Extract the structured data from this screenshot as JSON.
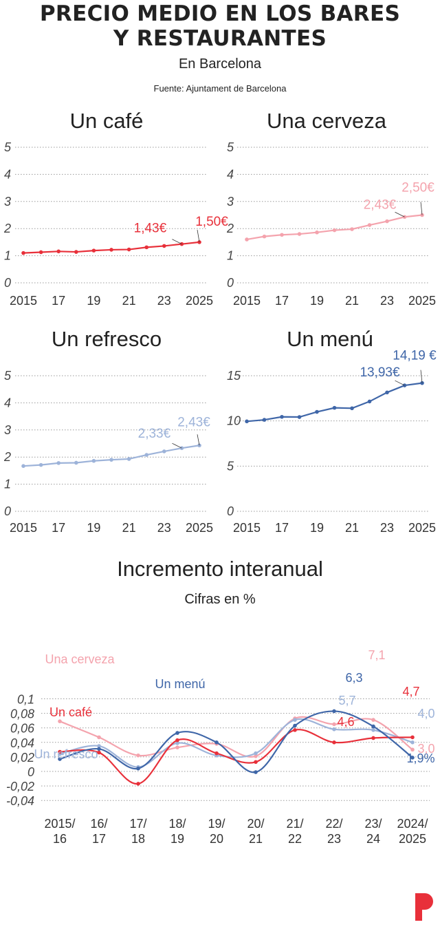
{
  "header": {
    "title_line1": "PRECIO MEDIO EN LOS BARES",
    "title_line2": "Y RESTAURANTES",
    "subtitle": "En Barcelona",
    "source": "Fuente: Ajuntament de Barcelona"
  },
  "colors": {
    "cafe": "#e8303a",
    "cerveza": "#f4a3ad",
    "refresco": "#9db3d9",
    "menu": "#3f66a8",
    "grid": "#9a9a9a",
    "logo": "#e8303a"
  },
  "logo_icon": "p-brand-logo",
  "chart_data": [
    {
      "type": "line",
      "title": "Un café",
      "x": [
        2015,
        2016,
        2017,
        2018,
        2019,
        2020,
        2021,
        2022,
        2023,
        2024,
        2025
      ],
      "x_tick_labels": [
        "2015",
        "17",
        "19",
        "21",
        "23",
        "2025"
      ],
      "x_tick_values": [
        2015,
        2017,
        2019,
        2021,
        2023,
        2025
      ],
      "series": [
        {
          "key": "cafe",
          "values": [
            1.1,
            1.13,
            1.16,
            1.14,
            1.19,
            1.22,
            1.23,
            1.31,
            1.36,
            1.43,
            1.5
          ]
        }
      ],
      "ylim": [
        0,
        5
      ],
      "yticks": [
        0,
        1,
        2,
        3,
        4,
        5
      ],
      "annotations": [
        {
          "index": 9,
          "text": "1,43€"
        },
        {
          "index": 10,
          "text": "1,50€"
        }
      ]
    },
    {
      "type": "line",
      "title": "Una cerveza",
      "x": [
        2015,
        2016,
        2017,
        2018,
        2019,
        2020,
        2021,
        2022,
        2023,
        2024,
        2025
      ],
      "x_tick_labels": [
        "2015",
        "17",
        "19",
        "21",
        "23",
        "2025"
      ],
      "x_tick_values": [
        2015,
        2017,
        2019,
        2021,
        2023,
        2025
      ],
      "series": [
        {
          "key": "cerveza",
          "values": [
            1.6,
            1.71,
            1.77,
            1.8,
            1.86,
            1.94,
            1.98,
            2.13,
            2.27,
            2.43,
            2.5
          ]
        }
      ],
      "ylim": [
        0,
        5
      ],
      "yticks": [
        0,
        1,
        2,
        3,
        4,
        5
      ],
      "annotations": [
        {
          "index": 9,
          "text": "2,43€"
        },
        {
          "index": 10,
          "text": "2,50€"
        }
      ]
    },
    {
      "type": "line",
      "title": "Un refresco",
      "x": [
        2015,
        2016,
        2017,
        2018,
        2019,
        2020,
        2021,
        2022,
        2023,
        2024,
        2025
      ],
      "x_tick_labels": [
        "2015",
        "17",
        "19",
        "21",
        "23",
        "2025"
      ],
      "x_tick_values": [
        2015,
        2017,
        2019,
        2021,
        2023,
        2025
      ],
      "series": [
        {
          "key": "refresco",
          "values": [
            1.67,
            1.71,
            1.78,
            1.79,
            1.86,
            1.9,
            1.93,
            2.08,
            2.21,
            2.33,
            2.43
          ]
        }
      ],
      "ylim": [
        0,
        5
      ],
      "yticks": [
        0,
        1,
        2,
        3,
        4,
        5
      ],
      "annotations": [
        {
          "index": 9,
          "text": "2,33€"
        },
        {
          "index": 10,
          "text": "2,43€"
        }
      ]
    },
    {
      "type": "line",
      "title": "Un menú",
      "x": [
        2015,
        2016,
        2017,
        2018,
        2019,
        2020,
        2021,
        2022,
        2023,
        2024,
        2025
      ],
      "x_tick_labels": [
        "2015",
        "17",
        "19",
        "21",
        "23",
        "2025"
      ],
      "x_tick_values": [
        2015,
        2017,
        2019,
        2021,
        2023,
        2025
      ],
      "series": [
        {
          "key": "menu",
          "values": [
            9.95,
            10.12,
            10.45,
            10.43,
            11.0,
            11.45,
            11.4,
            12.15,
            13.15,
            13.93,
            14.19
          ]
        }
      ],
      "ylim": [
        0,
        15
      ],
      "yticks": [
        0,
        5,
        10,
        15
      ],
      "annotations": [
        {
          "index": 9,
          "text": "13,93€"
        },
        {
          "index": 10,
          "text": "14,19 €"
        }
      ]
    },
    {
      "type": "line",
      "title": "Incremento interanual",
      "subtitle": "Cifras en %",
      "categories": [
        "2015/16",
        "16/17",
        "17/18",
        "18/19",
        "19/20",
        "20/21",
        "21/22",
        "22/23",
        "23/24",
        "2024/2025"
      ],
      "ylim": [
        -0.04,
        0.1
      ],
      "yticks": [
        -0.04,
        -0.02,
        0,
        0.02,
        0.04,
        0.06,
        0.08,
        0.1
      ],
      "ytick_labels": [
        "-0,04",
        "-0,02",
        "0",
        "0,02",
        "0,04",
        "0,06",
        "0,08",
        "0,1"
      ],
      "series": [
        {
          "key": "cerveza",
          "name": "Una cerveza",
          "values": [
            0.069,
            0.047,
            0.022,
            0.033,
            0.038,
            0.021,
            0.073,
            0.065,
            0.071,
            0.03
          ]
        },
        {
          "key": "refresco",
          "name": "Un refresco",
          "values": [
            0.024,
            0.035,
            0.006,
            0.039,
            0.022,
            0.025,
            0.071,
            0.058,
            0.057,
            0.04
          ]
        },
        {
          "key": "cafe",
          "name": "Un café",
          "values": [
            0.027,
            0.026,
            -0.017,
            0.043,
            0.025,
            0.013,
            0.057,
            0.04,
            0.046,
            0.047
          ]
        },
        {
          "key": "menu",
          "name": "Un menú",
          "values": [
            0.017,
            0.031,
            0.004,
            0.053,
            0.04,
            -0.001,
            0.063,
            0.083,
            0.062,
            0.019
          ]
        }
      ],
      "value_labels": [
        {
          "key": "cerveza",
          "text": "7,1"
        },
        {
          "key": "cafe",
          "text": "4,7"
        },
        {
          "key": "menu",
          "text": "6,3"
        },
        {
          "key": "refresco",
          "text": "5,7"
        },
        {
          "key": "refresco",
          "text": "4,0"
        },
        {
          "key": "cafe",
          "text": "4,6"
        },
        {
          "key": "cerveza",
          "text": "3,0"
        },
        {
          "key": "menu",
          "text": "1,9%"
        }
      ]
    }
  ]
}
